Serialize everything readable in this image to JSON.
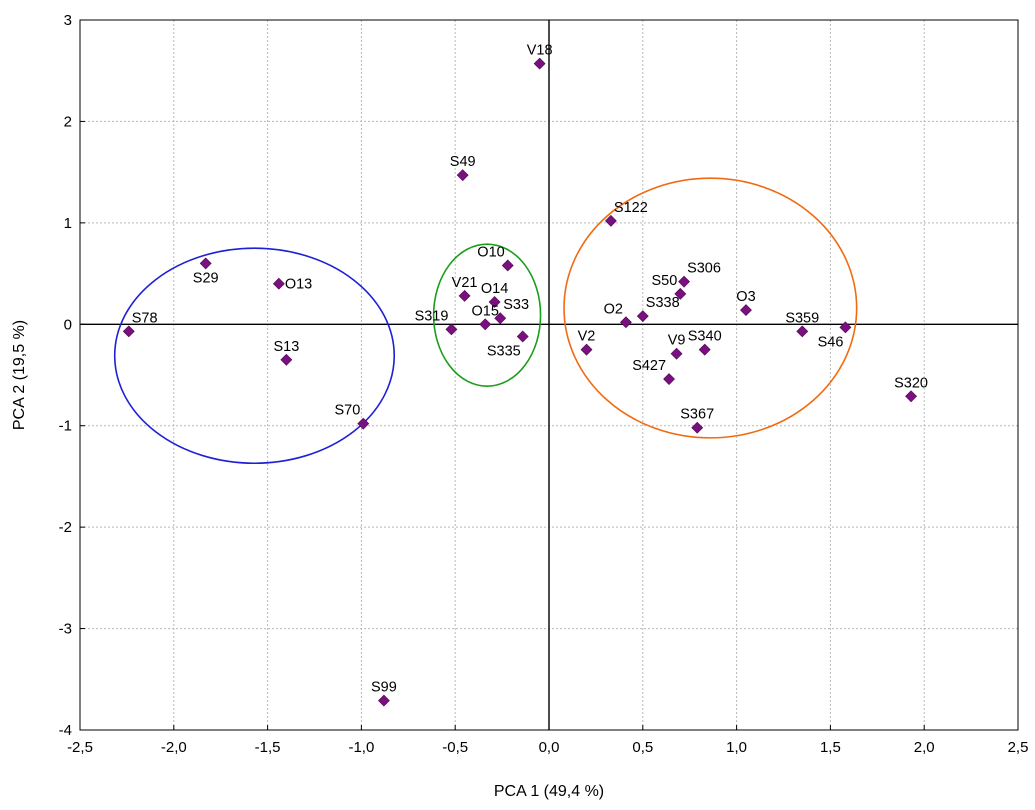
{
  "chart_data": {
    "type": "scatter",
    "xlabel": "PCA 1 (49,4 %)",
    "ylabel": "PCA 2 (19,5 %)",
    "xlim": [
      -2.5,
      2.5
    ],
    "ylim": [
      -4,
      3
    ],
    "xticks": [
      -2.5,
      -2.0,
      -1.5,
      -1.0,
      -0.5,
      0.0,
      0.5,
      1.0,
      1.5,
      2.0,
      2.5
    ],
    "xtick_labels": [
      "-2,5",
      "-2,0",
      "-1,5",
      "-1,0",
      "-0,5",
      "0,0",
      "0,5",
      "1,0",
      "1,5",
      "2,0",
      "2,5"
    ],
    "yticks": [
      -4,
      -3,
      -2,
      -1,
      0,
      1,
      2,
      3
    ],
    "ytick_labels": [
      "-4",
      "-3",
      "-2",
      "-1",
      "0",
      "1",
      "2",
      "3"
    ],
    "grid": true,
    "zero_lines": true,
    "marker": "diamond",
    "marker_color": "#7a0f7f",
    "points": [
      {
        "label": "V18",
        "x": -0.05,
        "y": 2.57,
        "label_pos": "above"
      },
      {
        "label": "S49",
        "x": -0.46,
        "y": 1.47,
        "label_pos": "above"
      },
      {
        "label": "S122",
        "x": 0.33,
        "y": 1.02,
        "label_pos": "above-right"
      },
      {
        "label": "S29",
        "x": -1.83,
        "y": 0.6,
        "label_pos": "below"
      },
      {
        "label": "O13",
        "x": -1.44,
        "y": 0.4,
        "label_pos": "right"
      },
      {
        "label": "S78",
        "x": -2.24,
        "y": -0.07,
        "label_pos": "above-right"
      },
      {
        "label": "S13",
        "x": -1.4,
        "y": -0.35,
        "label_pos": "above"
      },
      {
        "label": "S70",
        "x": -0.99,
        "y": -0.98,
        "label_pos": "above-left"
      },
      {
        "label": "S99",
        "x": -0.88,
        "y": -3.71,
        "label_pos": "above"
      },
      {
        "label": "O10",
        "x": -0.22,
        "y": 0.58,
        "label_pos": "above-left"
      },
      {
        "label": "V21",
        "x": -0.45,
        "y": 0.28,
        "label_pos": "above"
      },
      {
        "label": "O14",
        "x": -0.29,
        "y": 0.22,
        "label_pos": "above"
      },
      {
        "label": "S33",
        "x": -0.26,
        "y": 0.06,
        "label_pos": "above-right"
      },
      {
        "label": "O15",
        "x": -0.34,
        "y": 0.0,
        "label_pos": "above"
      },
      {
        "label": "S319",
        "x": -0.52,
        "y": -0.05,
        "label_pos": "above-left"
      },
      {
        "label": "S335",
        "x": -0.14,
        "y": -0.12,
        "label_pos": "below-left"
      },
      {
        "label": "S306",
        "x": 0.72,
        "y": 0.42,
        "label_pos": "above-right"
      },
      {
        "label": "S50",
        "x": 0.7,
        "y": 0.3,
        "label_pos": "above-left"
      },
      {
        "label": "S338",
        "x": 0.5,
        "y": 0.08,
        "label_pos": "above-right"
      },
      {
        "label": "O2",
        "x": 0.41,
        "y": 0.02,
        "label_pos": "above-left"
      },
      {
        "label": "O3",
        "x": 1.05,
        "y": 0.14,
        "label_pos": "above"
      },
      {
        "label": "S359",
        "x": 1.35,
        "y": -0.07,
        "label_pos": "above"
      },
      {
        "label": "S46",
        "x": 1.58,
        "y": -0.03,
        "label_pos": "below-left"
      },
      {
        "label": "V2",
        "x": 0.2,
        "y": -0.25,
        "label_pos": "above"
      },
      {
        "label": "V9",
        "x": 0.68,
        "y": -0.29,
        "label_pos": "above"
      },
      {
        "label": "S340",
        "x": 0.83,
        "y": -0.25,
        "label_pos": "above"
      },
      {
        "label": "S427",
        "x": 0.64,
        "y": -0.54,
        "label_pos": "above-left"
      },
      {
        "label": "S367",
        "x": 0.79,
        "y": -1.02,
        "label_pos": "above"
      },
      {
        "label": "S320",
        "x": 1.93,
        "y": -0.71,
        "label_pos": "above"
      }
    ],
    "ellipses": [
      {
        "cx": -1.57,
        "cy": -0.31,
        "rx": 0.745,
        "ry": 1.06,
        "color": "#1f1fd6"
      },
      {
        "cx": -0.33,
        "cy": 0.09,
        "rx": 0.285,
        "ry": 0.7,
        "color": "#1a9e1a"
      },
      {
        "cx": 0.86,
        "cy": 0.16,
        "rx": 0.78,
        "ry": 1.28,
        "color": "#f26a10"
      }
    ]
  }
}
